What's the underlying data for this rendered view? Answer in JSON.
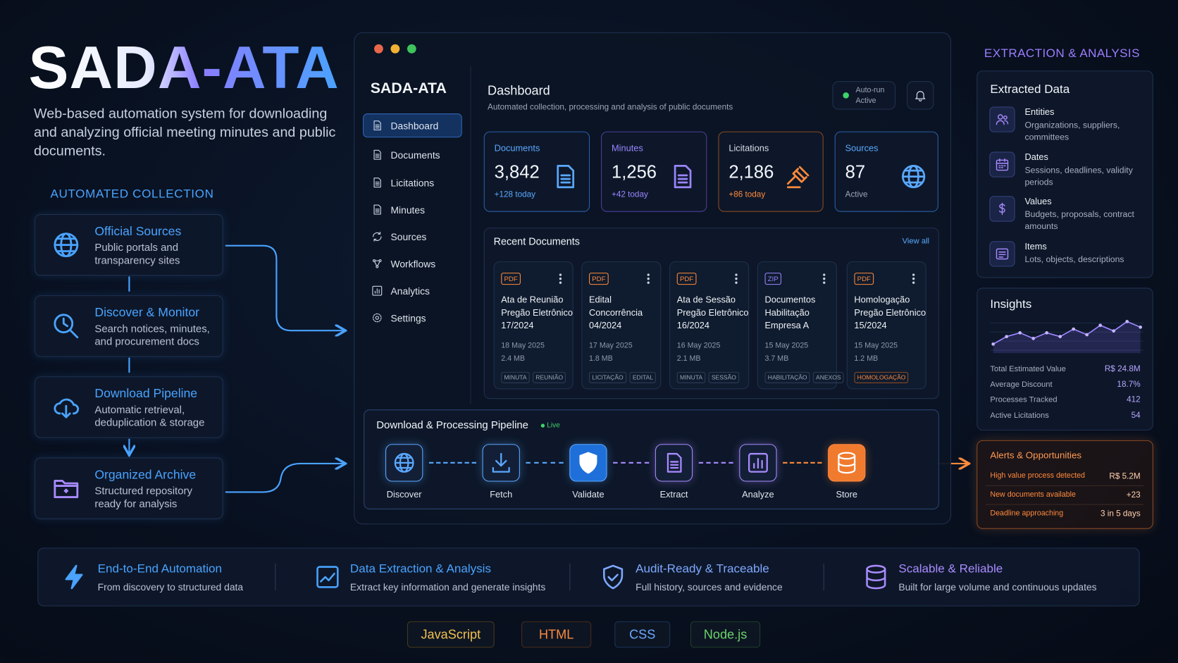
{
  "hero": {
    "title": "SADA-ATA",
    "description": "Web-based automation system for downloading and analyzing official meeting minutes and public documents."
  },
  "collection": {
    "heading": "AUTOMATED COLLECTION",
    "steps": [
      {
        "title": "Official Sources",
        "text": "Public portals and transparency sites"
      },
      {
        "title": "Discover & Monitor",
        "text": "Search notices, minutes, and procurement docs"
      },
      {
        "title": "Download Pipeline",
        "text": "Automatic retrieval, deduplication & storage"
      },
      {
        "title": "Organized Archive",
        "text": "Structured repository ready for analysis"
      }
    ]
  },
  "app": {
    "brand": "SADA-ATA",
    "nav": [
      "Dashboard",
      "Documents",
      "Licitations",
      "Minutes",
      "Sources",
      "Workflows",
      "Analytics",
      "Settings"
    ],
    "header": {
      "title": "Dashboard",
      "subtitle": "Automated collection, processing and analysis of public documents",
      "status": [
        "Auto-run",
        "Active"
      ]
    },
    "stats": [
      {
        "label": "Documents",
        "value": "3,842",
        "note": "+128 today"
      },
      {
        "label": "Minutes",
        "value": "1,256",
        "note": "+42 today"
      },
      {
        "label": "Licitations",
        "value": "2,186",
        "note": "+86 today"
      },
      {
        "label": "Sources",
        "value": "87",
        "note": "Active"
      }
    ],
    "recent": {
      "title": "Recent Documents",
      "link": "View all",
      "docs": [
        {
          "type": "PDF",
          "lines": [
            "Ata de Reunião",
            "Pregão Eletrônico",
            "17/2024"
          ],
          "date": "18 May 2025",
          "size": "2.4 MB",
          "tags": [
            "MINUTA",
            "REUNIÃO"
          ]
        },
        {
          "type": "PDF",
          "lines": [
            "Edital",
            "Concorrência",
            "04/2024"
          ],
          "date": "17 May 2025",
          "size": "1.8 MB",
          "tags": [
            "LICITAÇÃO",
            "EDITAL"
          ]
        },
        {
          "type": "PDF",
          "lines": [
            "Ata de Sessão",
            "Pregão Eletrônico",
            "16/2024"
          ],
          "date": "16 May 2025",
          "size": "2.1 MB",
          "tags": [
            "MINUTA",
            "SESSÃO"
          ]
        },
        {
          "type": "ZIP",
          "lines": [
            "Documentos",
            "Habilitação",
            "Empresa A"
          ],
          "date": "15 May 2025",
          "size": "3.7 MB",
          "tags": [
            "HABILITAÇÃO",
            "ANEXOS"
          ]
        },
        {
          "type": "PDF",
          "lines": [
            "Homologação",
            "Pregão Eletrônico",
            "15/2024"
          ],
          "date": "15 May 2025",
          "size": "1.2 MB",
          "tags": [
            "HOMOLOGAÇÃO"
          ]
        }
      ]
    },
    "pipeline": {
      "title": "Download & Processing Pipeline",
      "badge": "Live",
      "steps": [
        "Discover",
        "Fetch",
        "Validate",
        "Extract",
        "Analyze",
        "Store"
      ]
    }
  },
  "analysis": {
    "heading": "EXTRACTION & ANALYSIS",
    "extracted": {
      "title": "Extracted Data",
      "items": [
        {
          "title": "Entities",
          "text": "Organizations, suppliers, committees"
        },
        {
          "title": "Dates",
          "text": "Sessions, deadlines, validity periods"
        },
        {
          "title": "Values",
          "text": "Budgets, proposals, contract amounts"
        },
        {
          "title": "Items",
          "text": "Lots, objects, descriptions"
        }
      ]
    },
    "insights": {
      "title": "Insights",
      "trend": [
        2,
        4,
        5,
        3.5,
        5,
        4,
        6,
        4.5,
        7,
        5.5,
        8,
        6.5
      ],
      "metrics": [
        {
          "label": "Total Estimated Value",
          "value": "R$ 24.8M"
        },
        {
          "label": "Average Discount",
          "value": "18.7%"
        },
        {
          "label": "Processes Tracked",
          "value": "412"
        },
        {
          "label": "Active Licitations",
          "value": "54"
        }
      ]
    },
    "alerts": {
      "title": "Alerts & Opportunities",
      "items": [
        {
          "label": "High value process detected",
          "value": "R$ 5.2M"
        },
        {
          "label": "New documents available",
          "value": "+23"
        },
        {
          "label": "Deadline approaching",
          "value": "3 in 5 days"
        }
      ]
    }
  },
  "features": [
    {
      "title": "End-to-End Automation",
      "text": "From discovery to structured data"
    },
    {
      "title": "Data Extraction & Analysis",
      "text": "Extract key information and generate insights"
    },
    {
      "title": "Audit-Ready & Traceable",
      "text": "Full history, sources and evidence"
    },
    {
      "title": "Scalable & Reliable",
      "text": "Built for large volume and continuous updates"
    }
  ],
  "tech": [
    "JavaScript",
    "HTML",
    "CSS",
    "Node.js"
  ]
}
